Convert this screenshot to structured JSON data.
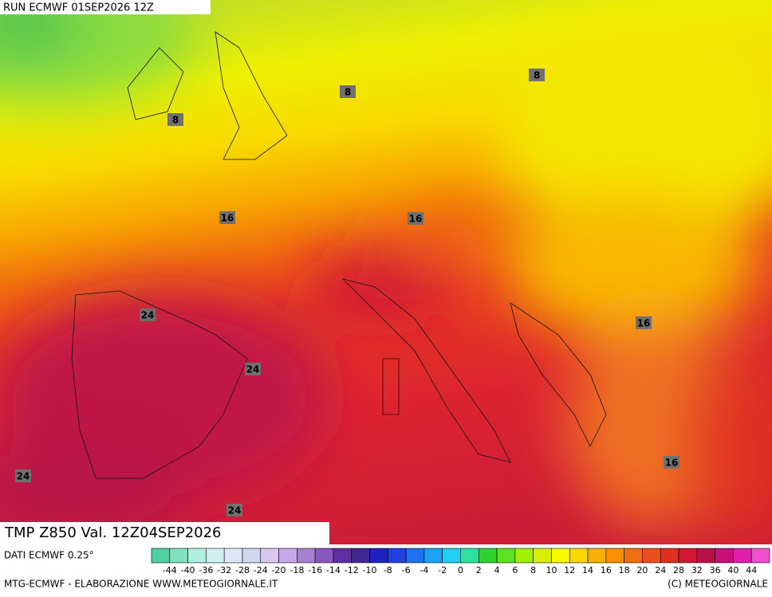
{
  "header": {
    "run": "RUN ECMWF 01SEP2026 12Z",
    "title": "TMP Z850 Val. 12Z04SEP2026"
  },
  "contour_labels": [
    8,
    8,
    8,
    16,
    16,
    16,
    16,
    24,
    24,
    24,
    24
  ],
  "colorbar": {
    "source": "DATI ECMWF 0.25°",
    "labels": [
      -44,
      -40,
      -36,
      -32,
      -28,
      -24,
      -20,
      -18,
      -16,
      -14,
      -12,
      -10,
      -8,
      -6,
      -4,
      -2,
      0,
      2,
      4,
      6,
      8,
      10,
      12,
      14,
      16,
      18,
      20,
      24,
      28,
      32,
      36,
      40,
      44
    ],
    "colors": [
      "#50d0a0",
      "#80e0c0",
      "#b0f0e0",
      "#d0f0f0",
      "#e0e8f8",
      "#d0d8f0",
      "#d8c8f0",
      "#c8a8e8",
      "#a880d0",
      "#8858c0",
      "#6030a0",
      "#402890",
      "#2020c0",
      "#2040e0",
      "#2070f0",
      "#20a0f0",
      "#20d0f0",
      "#30e0a0",
      "#30d030",
      "#60e020",
      "#a0f000",
      "#d8f000",
      "#f8f800",
      "#f8d800",
      "#f8b000",
      "#f89000",
      "#f07010",
      "#e85020",
      "#e03020",
      "#d01830",
      "#b81048",
      "#c81078",
      "#e020a8",
      "#f050d0"
    ]
  },
  "footer": {
    "left": "MTG-ECMWF - ELABORAZIONE WWW.METEOGIORNALE.IT",
    "right": "(C) METEOGIORNALE"
  }
}
